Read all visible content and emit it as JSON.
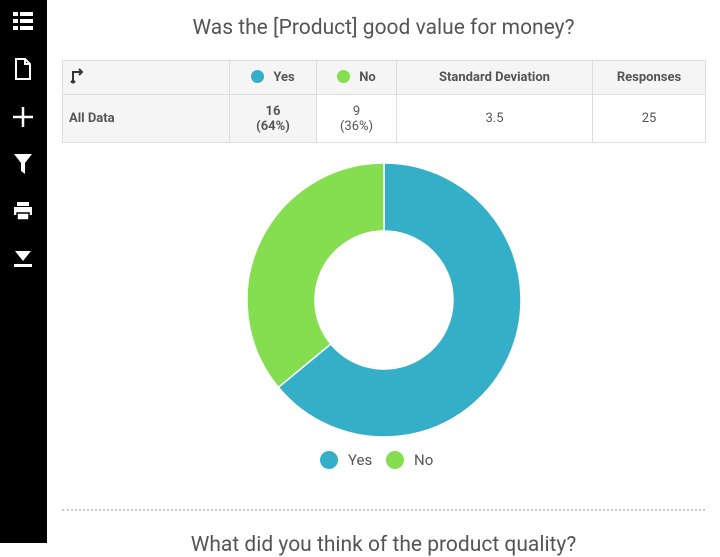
{
  "title": "Was the [Product] good value for money?",
  "table": {
    "headers": [
      "Yes",
      "No",
      "Standard Deviation",
      "Responses"
    ],
    "rows": [
      {
        "label": "All Data",
        "cells": [
          [
            "16",
            "(64%)"
          ],
          [
            "9",
            "(36%)"
          ],
          [
            "3.5"
          ],
          [
            "25"
          ]
        ]
      }
    ]
  },
  "chart_data": {
    "type": "pie",
    "donut": true,
    "categories": [
      "Yes",
      "No"
    ],
    "values": [
      16,
      9
    ],
    "colors": [
      "#35afc8",
      "#84de4f"
    ],
    "legend": "bottom"
  },
  "next_title": "What did you think of the product quality?"
}
